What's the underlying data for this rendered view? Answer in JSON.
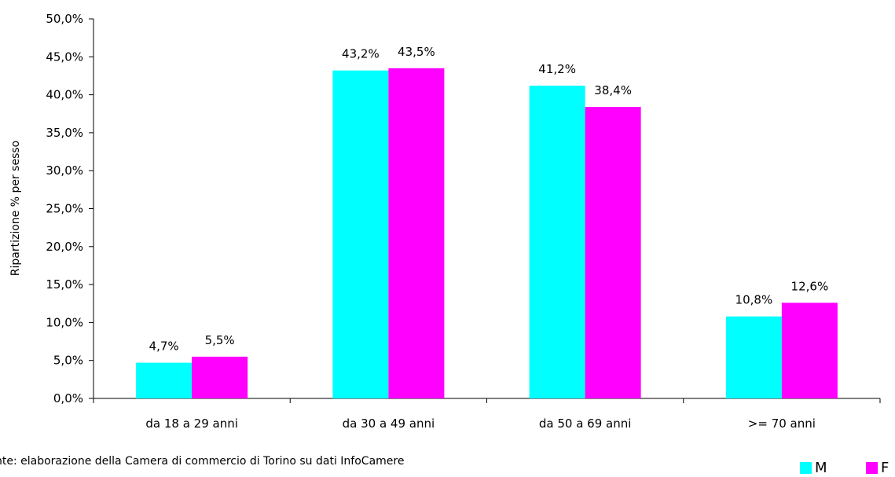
{
  "chart_data": {
    "type": "bar",
    "categories": [
      "da 18 a 29 anni",
      "da 30 a 49 anni",
      "da 50 a 69 anni",
      ">= 70 anni"
    ],
    "series": [
      {
        "name": "M",
        "color": "#00FFFF",
        "values": [
          4.7,
          43.2,
          41.2,
          10.8
        ],
        "labels": [
          "4,7%",
          "43,2%",
          "41,2%",
          "10,8%"
        ]
      },
      {
        "name": "F",
        "color": "#FF00FF",
        "values": [
          5.5,
          43.5,
          38.4,
          12.6
        ],
        "labels": [
          "5,5%",
          "43,5%",
          "38,4%",
          "12,6%"
        ]
      }
    ],
    "ylabel": "Ripartizione % per sesso",
    "ylim": [
      0,
      50
    ],
    "yticks": [
      "0,0%",
      "5,0%",
      "10,0%",
      "15,0%",
      "20,0%",
      "25,0%",
      "30,0%",
      "35,0%",
      "40,0%",
      "45,0%",
      "50,0%"
    ],
    "grid": false,
    "legend_position": "bottom-right"
  },
  "source_note": "nte: elaborazione della Camera di commercio di Torino su dati InfoCamere"
}
